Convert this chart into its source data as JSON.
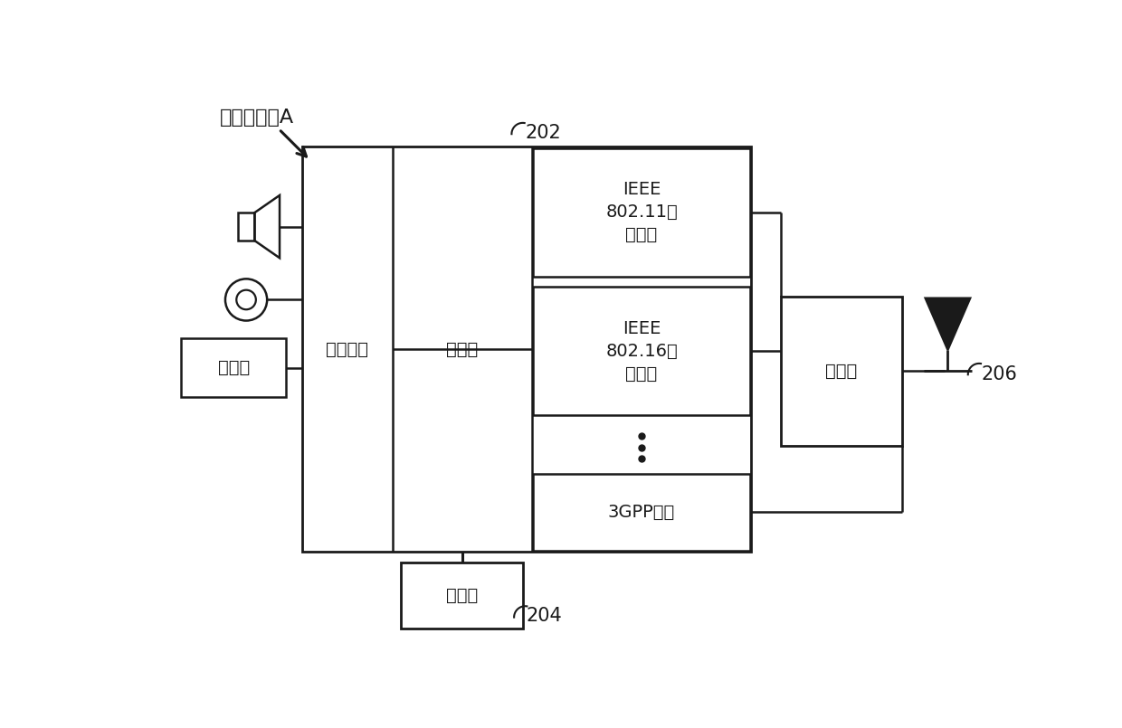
{
  "bg_color": "#ffffff",
  "line_color": "#1a1a1a",
  "text_color": "#1a1a1a",
  "label_A": "计算机终端A",
  "label_202": "202",
  "label_204": "204",
  "label_206": "206",
  "label_user_interface": "用户接口",
  "label_processor": "处理器",
  "label_memory": "存储器",
  "label_coupler": "耦合器",
  "label_ieee80211": "IEEE\n802.11网\n络接口",
  "label_ieee80216": "IEEE\n802.16网\n络接口",
  "label_3gpp": "3GPP接口",
  "label_display": "显示器",
  "font_size_main": 16,
  "font_size_ref": 15
}
